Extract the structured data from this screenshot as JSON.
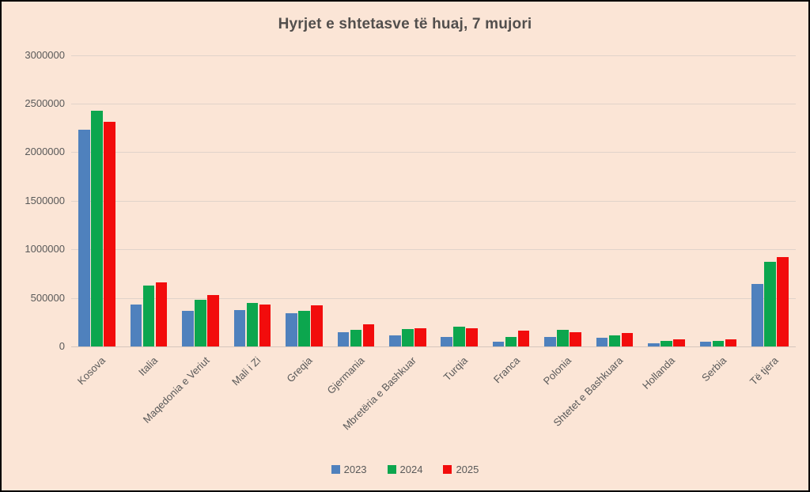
{
  "chart_data": {
    "type": "bar",
    "title": "Hyrjet e shtetasve të huaj, 7 mujori",
    "categories": [
      "Kosova",
      "Italia",
      "Maqedonia e Veriut",
      "Mali i Zi",
      "Greqia",
      "Gjermania",
      "Mbretëria e Bashkuar",
      "Turqia",
      "Franca",
      "Polonia",
      "Shtetet e Bashkuara",
      "Hollanda",
      "Serbia",
      "Të tjera"
    ],
    "series": [
      {
        "name": "2023",
        "color": "#4F81BD",
        "values": [
          2230000,
          430000,
          365000,
          375000,
          340000,
          150000,
          110000,
          100000,
          50000,
          100000,
          90000,
          30000,
          50000,
          640000
        ]
      },
      {
        "name": "2024",
        "color": "#0CA64E",
        "values": [
          2430000,
          630000,
          480000,
          445000,
          365000,
          175000,
          180000,
          200000,
          100000,
          175000,
          115000,
          60000,
          55000,
          870000
        ]
      },
      {
        "name": "2025",
        "color": "#F20C0C",
        "values": [
          2310000,
          660000,
          530000,
          435000,
          420000,
          230000,
          190000,
          185000,
          160000,
          150000,
          135000,
          75000,
          70000,
          920000
        ]
      }
    ],
    "ylim": [
      0,
      3000000
    ],
    "yticks": [
      0,
      500000,
      1000000,
      1500000,
      2000000,
      2500000,
      3000000
    ],
    "ytick_labels": [
      "0",
      "500000",
      "1000000",
      "1500000",
      "2000000",
      "2500000",
      "3000000"
    ],
    "grid": "horizontal",
    "legend_position": "bottom",
    "colors": {
      "background": "#FBE5D6",
      "frame_border": "#000000",
      "text": "#595959",
      "title_text": "#524F4D",
      "gridline": "#E0D3CA",
      "axis_line": "#D5C6BC"
    }
  }
}
